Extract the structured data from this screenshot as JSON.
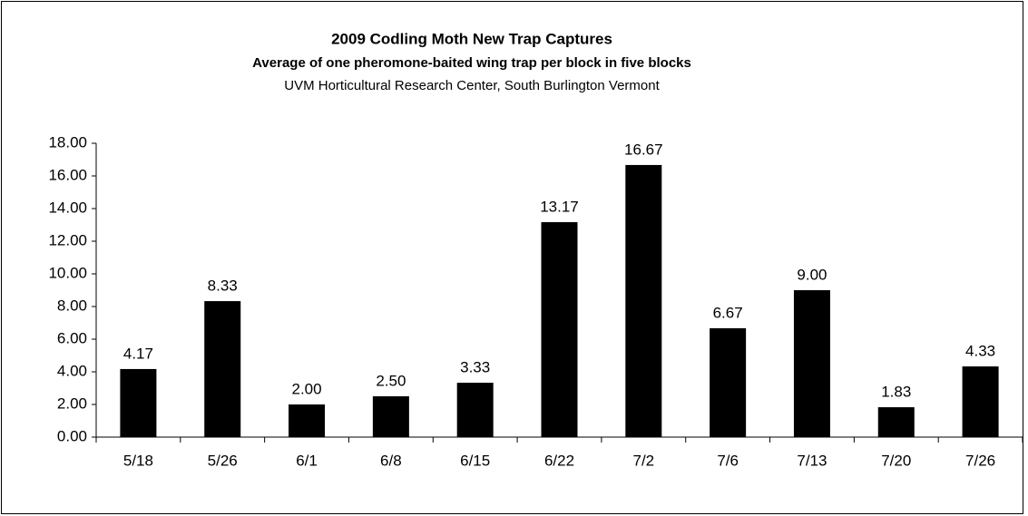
{
  "chart_data": {
    "type": "bar",
    "title": "2009 Codling Moth New Trap Captures",
    "subtitle": "Average of one pheromone-baited wing trap per block in five blocks",
    "caption": "UVM Horticultural Research Center, South Burlington Vermont",
    "categories": [
      "5/18",
      "5/26",
      "6/1",
      "6/8",
      "6/15",
      "6/22",
      "7/2",
      "7/6",
      "7/13",
      "7/20",
      "7/26"
    ],
    "values": [
      4.17,
      8.33,
      2,
      2.5,
      3.33,
      13.17,
      16.67,
      6.67,
      9,
      1.83,
      4.33
    ],
    "value_labels": [
      "4.17",
      "8.33",
      "2.00",
      "2.50",
      "3.33",
      "13.17",
      "16.67",
      "6.67",
      "9.00",
      "1.83",
      "4.33"
    ],
    "color": "#000000",
    "ylim": [
      0,
      18
    ],
    "yticks": [
      {
        "value": 0,
        "label": "0.00"
      },
      {
        "value": 2,
        "label": "2.00"
      },
      {
        "value": 4,
        "label": "4.00"
      },
      {
        "value": 6,
        "label": "6.00"
      },
      {
        "value": 8,
        "label": "8.00"
      },
      {
        "value": 10,
        "label": "10.00"
      },
      {
        "value": 12,
        "label": "12.00"
      },
      {
        "value": 14,
        "label": "14.00"
      },
      {
        "value": 16,
        "label": "16.00"
      },
      {
        "value": 18,
        "label": "18.00"
      }
    ],
    "grid": false
  }
}
